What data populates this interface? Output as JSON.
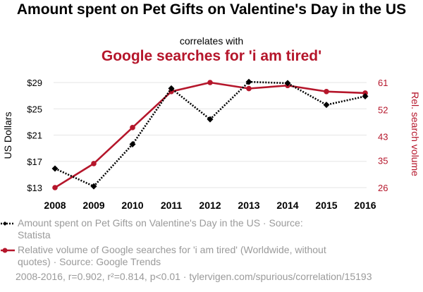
{
  "title": "Amount spent on Pet Gifts on Valentine's Day in the US",
  "subtitle": "correlates with",
  "title2": "Google searches for 'i am tired'",
  "colors": {
    "series1": "#000000",
    "series2": "#b5162b",
    "grid": "#e6e6e6",
    "footer": "#9a9a9a"
  },
  "chart_data": {
    "type": "line",
    "categories": [
      "2008",
      "2009",
      "2010",
      "2011",
      "2012",
      "2013",
      "2014",
      "2015",
      "2016"
    ],
    "y_left": {
      "label": "US Dollars",
      "ticks": [
        "$13",
        "$17",
        "$21",
        "$25",
        "$29"
      ],
      "tick_values": [
        13,
        17,
        21,
        25,
        29
      ],
      "range": [
        13,
        29
      ]
    },
    "y_right": {
      "label": "Rel. search volume",
      "ticks": [
        "26",
        "35",
        "43",
        "52",
        "61"
      ],
      "tick_values": [
        26,
        35,
        43,
        52,
        61
      ],
      "range": [
        26,
        61
      ]
    },
    "series": [
      {
        "name": "Amount spent on Pet Gifts on Valentine's Day in the US · Source: Statista",
        "axis": "left",
        "style": "dotted",
        "marker": "diamond",
        "values": [
          15.9,
          13.2,
          19.6,
          28.1,
          23.4,
          29.1,
          28.9,
          25.6,
          26.9
        ]
      },
      {
        "name": "Relative volume of Google searches for 'i am tired' (Worldwide, without quotes) · Source: Google Trends",
        "axis": "right",
        "style": "solid",
        "marker": "circle",
        "values": [
          26,
          34,
          46,
          58,
          61,
          59,
          60,
          58,
          57.5
        ]
      }
    ],
    "grid": true
  },
  "footer": "2008-2016, r=0.902, r²=0.814, p<0.01 · tylervigen.com/spurious/correlation/15193"
}
